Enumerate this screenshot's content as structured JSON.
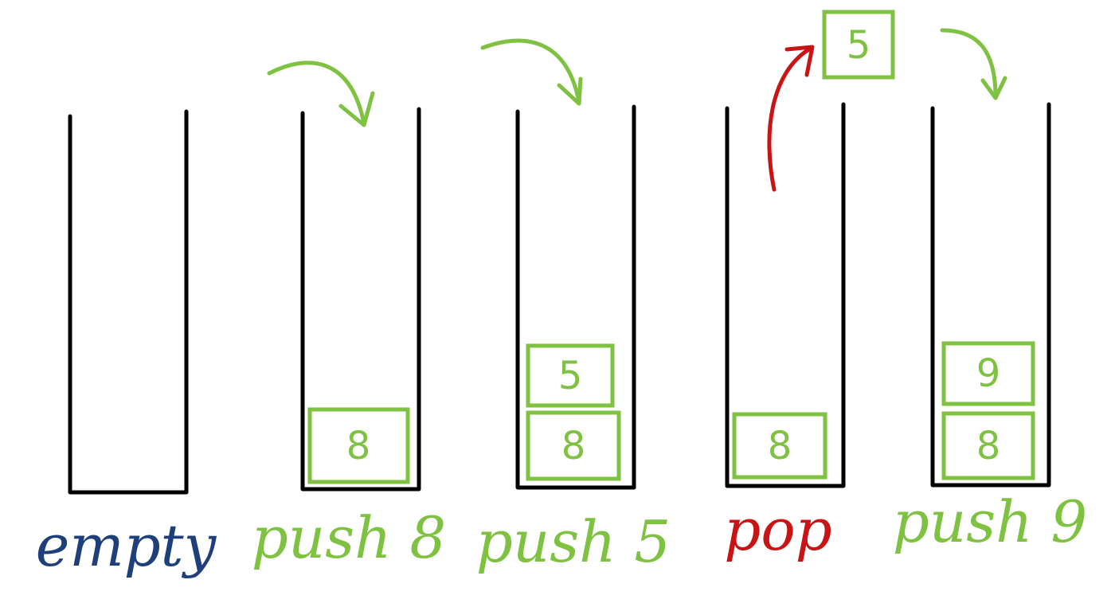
{
  "colors": {
    "outline": "#000000",
    "push": "#7fc241",
    "pop": "#c81414",
    "empty": "#1e3f7a"
  },
  "stacks": [
    {
      "label": "empty",
      "label_color": "#1e3f7a",
      "items": []
    },
    {
      "label": "push 8",
      "label_color": "#7fc241",
      "items": [
        "8"
      ]
    },
    {
      "label": "push 5",
      "label_color": "#7fc241",
      "items": [
        "8",
        "5"
      ]
    },
    {
      "label": "pop",
      "label_color": "#c81414",
      "items": [
        "8"
      ]
    },
    {
      "label": "push 9",
      "label_color": "#7fc241",
      "items": [
        "8",
        "9"
      ]
    }
  ],
  "popped_item": {
    "value": "5",
    "color": "#7fc241"
  },
  "arrows": [
    {
      "kind": "push",
      "color": "#7fc241"
    },
    {
      "kind": "push",
      "color": "#7fc241"
    },
    {
      "kind": "pop",
      "color": "#c81414"
    },
    {
      "kind": "push",
      "color": "#7fc241"
    }
  ]
}
